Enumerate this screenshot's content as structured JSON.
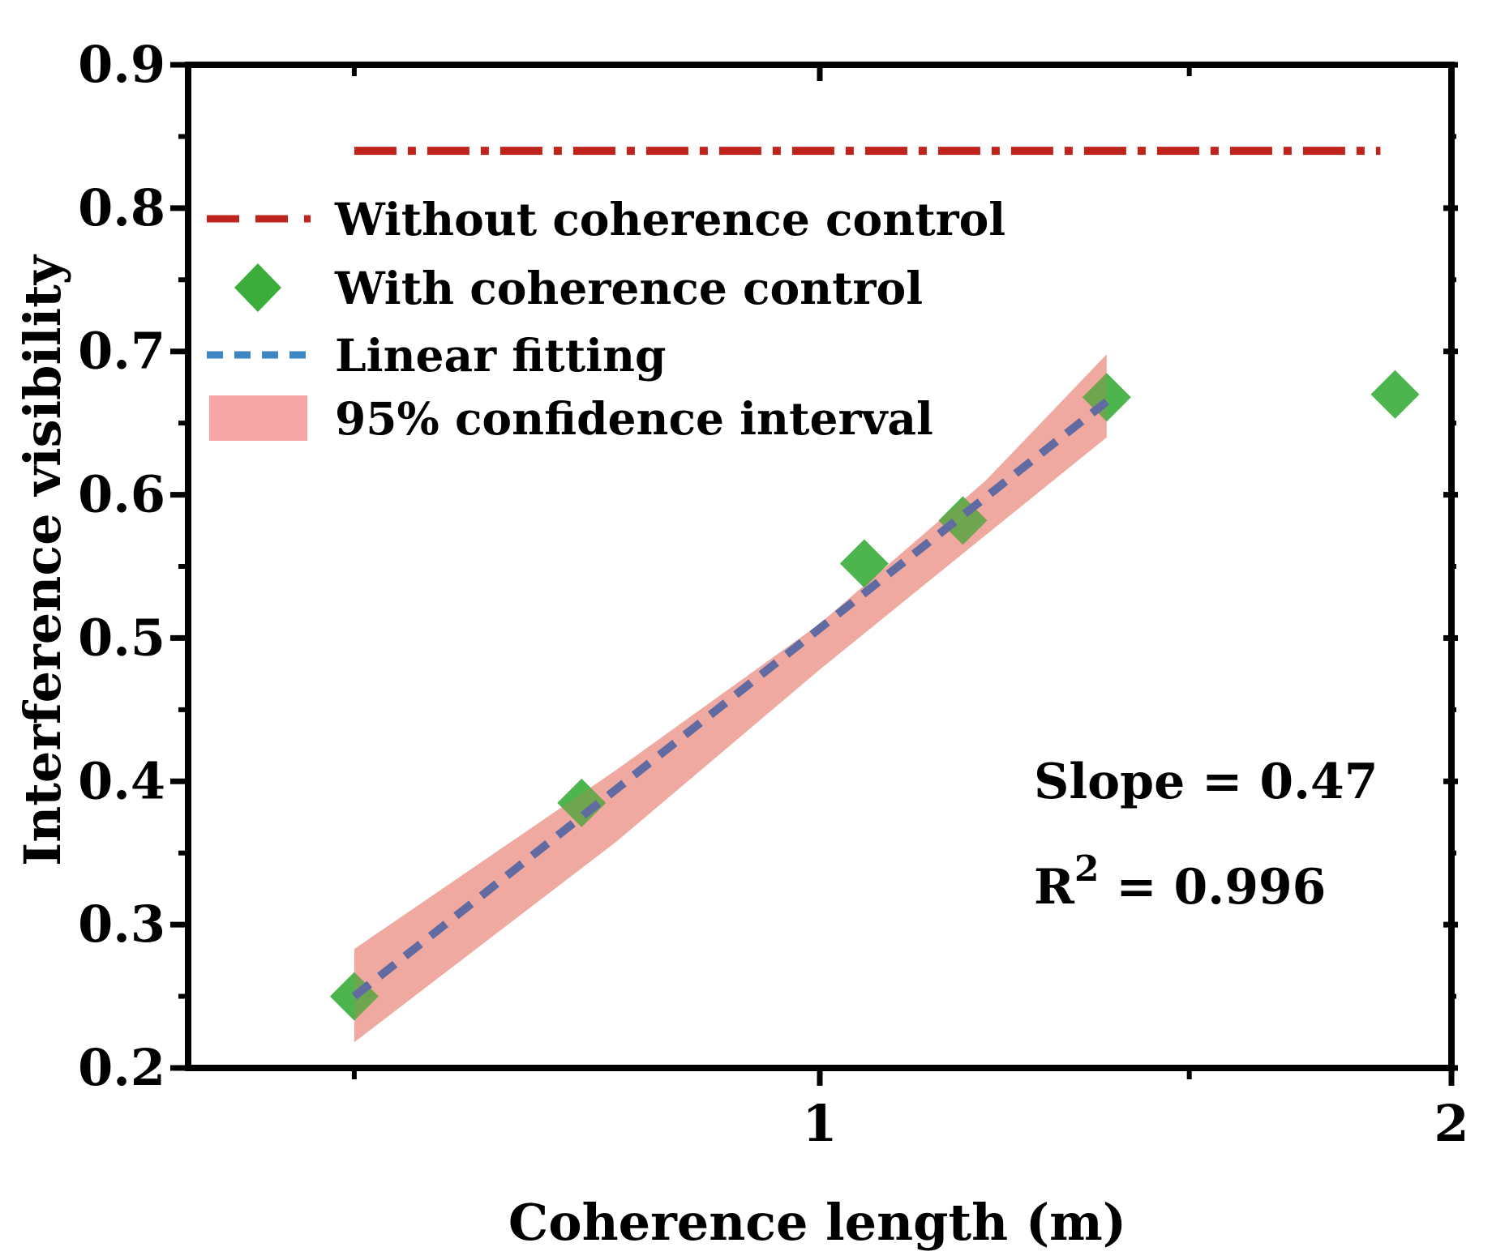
{
  "chart_data": {
    "type": "scatter",
    "title": "",
    "xlabel": "Coherence length (m)",
    "ylabel": "Interference visibility",
    "xscale": "log",
    "xlim": [
      0.5,
      2.0
    ],
    "ylim": [
      0.2,
      0.9
    ],
    "xticks": [
      {
        "value": 1,
        "label": "1"
      },
      {
        "value": 2,
        "label": "2"
      }
    ],
    "xticks_unlabeled": [
      0.6,
      1.5
    ],
    "yticks": [
      {
        "value": 0.2,
        "label": "0.2"
      },
      {
        "value": 0.3,
        "label": "0.3"
      },
      {
        "value": 0.4,
        "label": "0.4"
      },
      {
        "value": 0.5,
        "label": "0.5"
      },
      {
        "value": 0.6,
        "label": "0.6"
      },
      {
        "value": 0.7,
        "label": "0.7"
      },
      {
        "value": 0.8,
        "label": "0.8"
      },
      {
        "value": 0.9,
        "label": "0.9"
      }
    ],
    "series": [
      {
        "name": "Without coherence control",
        "kind": "hline",
        "color": "#c0231b",
        "x": [
          0.6,
          1.85
        ],
        "y": [
          0.84,
          0.84
        ]
      },
      {
        "name": "With coherence control",
        "kind": "scatter",
        "marker": "diamond",
        "color": "#3aad3a",
        "x": [
          0.6,
          0.77,
          1.05,
          1.17,
          1.37,
          1.88
        ],
        "y": [
          0.25,
          0.385,
          0.552,
          0.582,
          0.668,
          0.67
        ]
      },
      {
        "name": "Linear fitting",
        "kind": "line",
        "color": "#3c86c4",
        "x": [
          0.6,
          1.37
        ],
        "y": [
          0.25,
          0.665
        ]
      },
      {
        "name": "95% confidence interval",
        "kind": "band",
        "color": "#f7a6a6",
        "x": [
          0.6,
          0.8,
          1.0,
          1.2,
          1.37
        ],
        "upper": [
          0.283,
          0.408,
          0.51,
          0.61,
          0.698
        ],
        "lower": [
          0.218,
          0.358,
          0.478,
          0.572,
          0.64
        ]
      }
    ],
    "legend_position": "top-left",
    "annotations": {
      "slope": "Slope = 0.47",
      "r2_base": "R",
      "r2_sup": "2",
      "r2_rest": " = 0.996"
    }
  }
}
